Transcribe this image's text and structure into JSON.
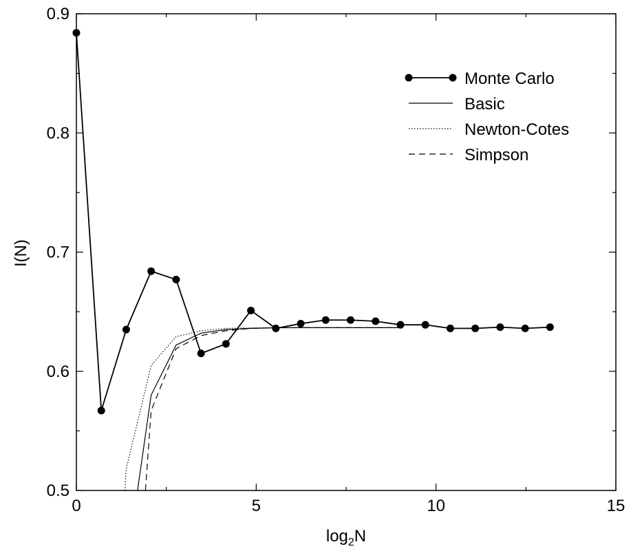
{
  "chart_data": {
    "type": "line",
    "xlabel": {
      "main": "log",
      "sub": "2",
      "tail": "N"
    },
    "ylabel": "I(N)",
    "xlim": [
      0,
      15
    ],
    "ylim": [
      0.5,
      0.9
    ],
    "xticks": [
      0,
      5,
      10,
      15
    ],
    "xtick_labels": [
      "0",
      "5",
      "10",
      "15"
    ],
    "yticks": [
      0.5,
      0.6,
      0.7,
      0.8,
      0.9
    ],
    "ytick_labels": [
      "0.5",
      "0.6",
      "0.7",
      "0.8",
      "0.9"
    ],
    "grid": false,
    "legend_placement": "top-right",
    "series": [
      {
        "name": "Monte Carlo",
        "style": "solid-markers",
        "color": "#000000",
        "x": [
          0.0,
          0.693,
          1.386,
          2.079,
          2.773,
          3.466,
          4.159,
          4.852,
          5.545,
          6.238,
          6.931,
          7.624,
          8.318,
          9.011,
          9.704,
          10.397,
          11.09,
          11.783,
          12.477,
          13.17
        ],
        "y": [
          0.884,
          0.567,
          0.635,
          0.684,
          0.677,
          0.615,
          0.623,
          0.651,
          0.636,
          0.64,
          0.643,
          0.643,
          0.642,
          0.639,
          0.639,
          0.636,
          0.636,
          0.637,
          0.636,
          0.637
        ]
      },
      {
        "name": "Basic",
        "style": "solid",
        "color": "#000000",
        "x": [
          1.7,
          2.079,
          2.773,
          3.466,
          4.159,
          4.852,
          5.545,
          6.238,
          6.931,
          7.624,
          8.318,
          9.011
        ],
        "y": [
          0.5,
          0.58,
          0.622,
          0.632,
          0.635,
          0.636,
          0.6365,
          0.6366,
          0.6366,
          0.6366,
          0.6366,
          0.6366
        ]
      },
      {
        "name": "Newton-Cotes",
        "style": "dotted",
        "color": "#000000",
        "x": [
          1.35,
          1.386,
          2.079,
          2.773,
          3.466,
          4.159,
          4.852,
          5.545,
          6.238,
          6.931,
          7.624,
          8.318,
          9.011
        ],
        "y": [
          0.5,
          0.518,
          0.605,
          0.629,
          0.634,
          0.636,
          0.6364,
          0.6366,
          0.6366,
          0.6366,
          0.6366,
          0.6366,
          0.6366
        ]
      },
      {
        "name": "Simpson",
        "style": "dashed",
        "color": "#000000",
        "x": [
          1.92,
          2.079,
          2.773,
          3.466,
          4.159,
          4.852,
          5.545,
          6.238,
          6.931,
          7.624,
          8.318,
          9.011
        ],
        "y": [
          0.5,
          0.567,
          0.619,
          0.63,
          0.634,
          0.636,
          0.6365,
          0.6366,
          0.6366,
          0.6366,
          0.6366,
          0.6366
        ]
      }
    ]
  }
}
